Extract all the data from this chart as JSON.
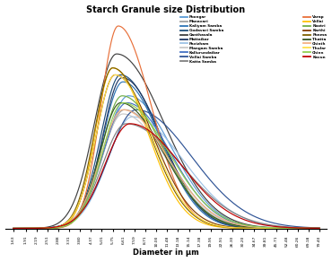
{
  "title": "Starch Granule size Distribution",
  "xlabel": "Diameter in μm",
  "x_ticks": [
    1.63,
    1.91,
    2.19,
    2.51,
    2.88,
    3.31,
    3.8,
    4.37,
    5.01,
    5.75,
    6.61,
    7.59,
    8.71,
    10.0,
    11.48,
    13.18,
    15.14,
    17.38,
    19.95,
    22.91,
    26.3,
    30.2,
    34.67,
    39.81,
    45.71,
    52.48,
    60.26,
    69.18,
    79.4
  ],
  "series": [
    {
      "name": "Poongar",
      "color": "#5b9bd5",
      "mu": 1.95,
      "sigma_l": 0.3,
      "sigma_r": 0.55,
      "peak": 9.5
    },
    {
      "name": "Manavari",
      "color": "#a0a0a0",
      "mu": 1.9,
      "sigma_l": 0.28,
      "sigma_r": 0.55,
      "peak": 8.5
    },
    {
      "name": "Kaliyam Samba",
      "color": "#2e75b6",
      "mu": 1.88,
      "sigma_l": 0.26,
      "sigma_r": 0.48,
      "peak": 10.5
    },
    {
      "name": "Godavari Samba",
      "color": "#1f4e79",
      "mu": 1.85,
      "sigma_l": 0.25,
      "sigma_r": 0.5,
      "peak": 11.0
    },
    {
      "name": "Ganthasala",
      "color": "#404040",
      "mu": 1.8,
      "sigma_l": 0.28,
      "sigma_r": 0.6,
      "peak": 12.5
    },
    {
      "name": "Mattaikar",
      "color": "#203864",
      "mu": 1.87,
      "sigma_l": 0.25,
      "sigma_r": 0.5,
      "peak": 10.8
    },
    {
      "name": "Pavizham",
      "color": "#9dc3e6",
      "mu": 2.0,
      "sigma_l": 0.32,
      "sigma_r": 0.65,
      "peak": 8.0
    },
    {
      "name": "Mangam Samba",
      "color": "#c8c8c8",
      "mu": 1.88,
      "sigma_l": 0.28,
      "sigma_r": 0.55,
      "peak": 8.2
    },
    {
      "name": "Kallurundaikar",
      "color": "#4472c4",
      "mu": 1.93,
      "sigma_l": 0.3,
      "sigma_r": 0.55,
      "peak": 9.0
    },
    {
      "name": "Vellai Samba",
      "color": "#2f5496",
      "mu": 2.05,
      "sigma_l": 0.35,
      "sigma_r": 0.7,
      "peak": 8.5
    },
    {
      "name": "Katta Samba",
      "color": "#808080",
      "mu": 1.92,
      "sigma_l": 0.3,
      "sigma_r": 0.7,
      "peak": 7.5
    },
    {
      "name": "Varap",
      "color": "#e8703a",
      "mu": 1.82,
      "sigma_l": 0.22,
      "sigma_r": 0.42,
      "peak": 14.5
    },
    {
      "name": "Vellai",
      "color": "#ffc000",
      "mu": 1.75,
      "sigma_l": 0.22,
      "sigma_r": 0.44,
      "peak": 11.5
    },
    {
      "name": "Nootri",
      "color": "#70ad47",
      "mu": 1.87,
      "sigma_l": 0.26,
      "sigma_r": 0.52,
      "peak": 9.5
    },
    {
      "name": "Karthi",
      "color": "#833c00",
      "mu": 1.78,
      "sigma_l": 0.24,
      "sigma_r": 0.48,
      "peak": 11.0
    },
    {
      "name": "Ponma",
      "color": "#7f6000",
      "mu": 1.75,
      "sigma_l": 0.23,
      "sigma_r": 0.46,
      "peak": 11.5
    },
    {
      "name": "Thatta",
      "color": "#375623",
      "mu": 1.85,
      "sigma_l": 0.26,
      "sigma_r": 0.54,
      "peak": 9.0
    },
    {
      "name": "Chinth",
      "color": "#f4b183",
      "mu": 1.88,
      "sigma_l": 0.28,
      "sigma_r": 0.56,
      "peak": 8.5
    },
    {
      "name": "Thular",
      "color": "#ffe04b",
      "mu": 1.78,
      "sigma_l": 0.24,
      "sigma_r": 0.46,
      "peak": 11.0
    },
    {
      "name": "Chinn",
      "color": "#92d050",
      "mu": 1.88,
      "sigma_l": 0.26,
      "sigma_r": 0.58,
      "peak": 9.0
    },
    {
      "name": "Kavun",
      "color": "#c00000",
      "mu": 1.97,
      "sigma_l": 0.32,
      "sigma_r": 0.65,
      "peak": 7.5
    }
  ]
}
